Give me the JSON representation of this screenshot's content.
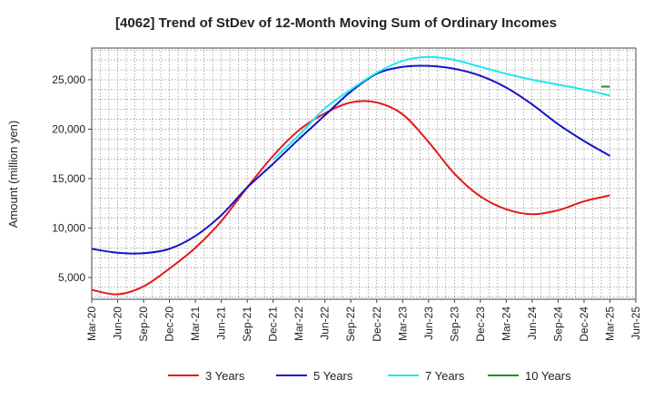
{
  "chart_data": {
    "type": "line",
    "title": "[4062]  Trend of StDev of 12-Month Moving Sum of Ordinary Incomes",
    "xlabel": "",
    "ylabel": "Amount (million yen)",
    "ylim": [
      2800,
      28200
    ],
    "yticks": [
      5000,
      10000,
      15000,
      20000,
      25000
    ],
    "ytick_labels": [
      "5,000",
      "10,000",
      "15,000",
      "20,000",
      "25,000"
    ],
    "x_range_months": [
      0,
      63
    ],
    "xticks": [
      0,
      3,
      6,
      9,
      12,
      15,
      18,
      21,
      24,
      27,
      30,
      33,
      36,
      39,
      42,
      45,
      48,
      51,
      54,
      57,
      60,
      63
    ],
    "xtick_labels": [
      "Mar-20",
      "Jun-20",
      "Sep-20",
      "Dec-20",
      "Mar-21",
      "Jun-21",
      "Sep-21",
      "Dec-21",
      "Mar-22",
      "Jun-22",
      "Sep-22",
      "Dec-22",
      "Mar-23",
      "Jun-23",
      "Sep-23",
      "Dec-23",
      "Mar-24",
      "Jun-24",
      "Sep-24",
      "Dec-24",
      "Mar-25",
      "Jun-25"
    ],
    "grid": true,
    "legend_position": "bottom",
    "series": [
      {
        "name": "3 Years",
        "color": "#e31a1c",
        "x": [
          0,
          3,
          6,
          9,
          12,
          15,
          18,
          21,
          24,
          27,
          30,
          33,
          36,
          39,
          42,
          45,
          48,
          51,
          54,
          57,
          60
        ],
        "values": [
          3750,
          3300,
          4100,
          5900,
          8000,
          10700,
          14100,
          17300,
          19900,
          21600,
          22700,
          22700,
          21500,
          18700,
          15500,
          13200,
          11900,
          11400,
          11800,
          12700,
          13300
        ]
      },
      {
        "name": "5 Years",
        "color": "#1414c8",
        "x": [
          0,
          3,
          6,
          9,
          12,
          15,
          18,
          21,
          24,
          27,
          30,
          33,
          36,
          39,
          42,
          45,
          48,
          51,
          54,
          57,
          60
        ],
        "values": [
          7900,
          7500,
          7450,
          7900,
          9200,
          11300,
          14100,
          16500,
          19000,
          21400,
          23800,
          25600,
          26300,
          26400,
          26100,
          25400,
          24200,
          22500,
          20500,
          18800,
          17300
        ]
      },
      {
        "name": "7 Years",
        "color": "#22e6f0",
        "x": [
          21,
          24,
          27,
          30,
          33,
          36,
          39,
          42,
          45,
          48,
          51,
          54,
          57,
          60
        ],
        "values": [
          16900,
          19400,
          22100,
          24000,
          25700,
          26900,
          27300,
          27000,
          26300,
          25600,
          25000,
          24500,
          24000,
          23400
        ]
      },
      {
        "name": "10 Years",
        "color": "#2a8a2a",
        "x": [
          59,
          60
        ],
        "values": [
          24300,
          24300
        ]
      }
    ]
  }
}
